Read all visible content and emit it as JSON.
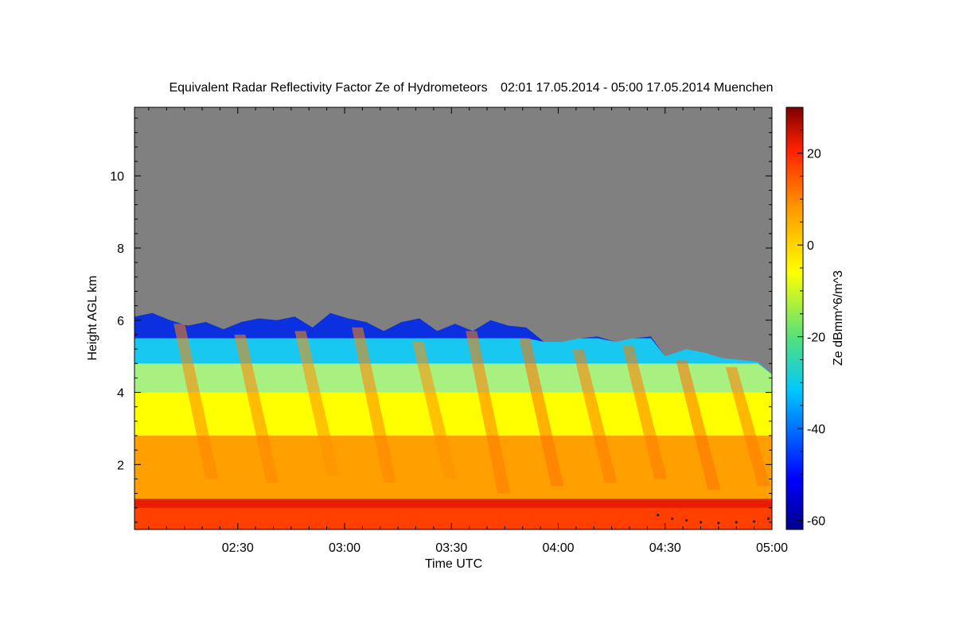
{
  "chart_data": {
    "type": "heatmap",
    "title": "Equivalent Radar Reflectivity Factor Ze of Hydrometeors",
    "subtitle": "02:01 17.05.2014 - 05:00 17.05.2014 Muenchen",
    "xlabel": "Time UTC",
    "ylabel": "Height AGL km",
    "x_ticks": [
      "02:30",
      "03:00",
      "03:30",
      "04:00",
      "04:30",
      "05:00"
    ],
    "x_tick_minutes": [
      150,
      180,
      210,
      240,
      270,
      300
    ],
    "xlim_minutes": [
      121,
      300
    ],
    "y_ticks": [
      "2",
      "4",
      "6",
      "8",
      "10"
    ],
    "y_tick_values": [
      2,
      4,
      6,
      8,
      10
    ],
    "ylim": [
      0.2,
      11.9
    ],
    "colorbar": {
      "label": "Ze dBmm^6/m^3",
      "ticks": [
        "20",
        "0",
        "-20",
        "-40",
        "-60"
      ],
      "tick_values": [
        20,
        0,
        -20,
        -40,
        -60
      ],
      "range": [
        -62,
        30
      ]
    },
    "background_color": "#808080",
    "echo_top_km": [
      {
        "minute": 121,
        "height": 6.1
      },
      {
        "minute": 126,
        "height": 6.2
      },
      {
        "minute": 131,
        "height": 6.0
      },
      {
        "minute": 136,
        "height": 5.85
      },
      {
        "minute": 141,
        "height": 5.95
      },
      {
        "minute": 146,
        "height": 5.75
      },
      {
        "minute": 151,
        "height": 5.95
      },
      {
        "minute": 156,
        "height": 6.05
      },
      {
        "minute": 161,
        "height": 6.0
      },
      {
        "minute": 166,
        "height": 6.1
      },
      {
        "minute": 171,
        "height": 5.8
      },
      {
        "minute": 176,
        "height": 6.2
      },
      {
        "minute": 181,
        "height": 6.05
      },
      {
        "minute": 186,
        "height": 5.95
      },
      {
        "minute": 191,
        "height": 5.7
      },
      {
        "minute": 196,
        "height": 5.95
      },
      {
        "minute": 201,
        "height": 6.05
      },
      {
        "minute": 206,
        "height": 5.7
      },
      {
        "minute": 211,
        "height": 5.9
      },
      {
        "minute": 216,
        "height": 5.7
      },
      {
        "minute": 221,
        "height": 6.0
      },
      {
        "minute": 226,
        "height": 5.85
      },
      {
        "minute": 231,
        "height": 5.8
      },
      {
        "minute": 236,
        "height": 5.4
      },
      {
        "minute": 241,
        "height": 5.4
      },
      {
        "minute": 246,
        "height": 5.5
      },
      {
        "minute": 251,
        "height": 5.55
      },
      {
        "minute": 256,
        "height": 5.4
      },
      {
        "minute": 261,
        "height": 5.5
      },
      {
        "minute": 266,
        "height": 5.55
      },
      {
        "minute": 270,
        "height": 5.0
      },
      {
        "minute": 276,
        "height": 5.2
      },
      {
        "minute": 281,
        "height": 5.1
      },
      {
        "minute": 286,
        "height": 4.95
      },
      {
        "minute": 291,
        "height": 4.9
      },
      {
        "minute": 296,
        "height": 4.85
      },
      {
        "minute": 300,
        "height": 4.5
      }
    ],
    "melting_layer_km": [
      0.8,
      1.05
    ],
    "intensity_layers": [
      {
        "from_km": 5.5,
        "to_km": 6.2,
        "ze_dbz": -38,
        "color": "#0a30e0"
      },
      {
        "from_km": 4.8,
        "to_km": 5.5,
        "ze_dbz": -25,
        "color": "#19c8f0"
      },
      {
        "from_km": 4.0,
        "to_km": 4.8,
        "ze_dbz": -8,
        "color": "#a8f080"
      },
      {
        "from_km": 2.8,
        "to_km": 4.0,
        "ze_dbz": 0,
        "color": "#ffff00"
      },
      {
        "from_km": 1.0,
        "to_km": 2.8,
        "ze_dbz": 8,
        "color": "#ffa000"
      },
      {
        "from_km": 0.2,
        "to_km": 1.0,
        "ze_dbz": 15,
        "color": "#ff4000"
      }
    ],
    "fall_streaks": [
      {
        "minute": 132,
        "top_km": 5.9,
        "bottom_km": 1.6,
        "ze_dbz": 10
      },
      {
        "minute": 149,
        "top_km": 5.6,
        "bottom_km": 1.5,
        "ze_dbz": 10
      },
      {
        "minute": 166,
        "top_km": 5.7,
        "bottom_km": 1.7,
        "ze_dbz": 9
      },
      {
        "minute": 182,
        "top_km": 5.8,
        "bottom_km": 1.5,
        "ze_dbz": 10
      },
      {
        "minute": 199,
        "top_km": 5.4,
        "bottom_km": 1.6,
        "ze_dbz": 9
      },
      {
        "minute": 214,
        "top_km": 5.7,
        "bottom_km": 1.2,
        "ze_dbz": 11
      },
      {
        "minute": 229,
        "top_km": 5.5,
        "bottom_km": 1.4,
        "ze_dbz": 12
      },
      {
        "minute": 244,
        "top_km": 5.2,
        "bottom_km": 1.5,
        "ze_dbz": 11
      },
      {
        "minute": 258,
        "top_km": 5.3,
        "bottom_km": 1.6,
        "ze_dbz": 11
      },
      {
        "minute": 273,
        "top_km": 4.9,
        "bottom_km": 1.3,
        "ze_dbz": 12
      },
      {
        "minute": 287,
        "top_km": 4.7,
        "bottom_km": 1.4,
        "ze_dbz": 11
      }
    ],
    "ground_clutter": [
      {
        "minute": 268,
        "height": 0.6
      },
      {
        "minute": 272,
        "height": 0.5
      },
      {
        "minute": 276,
        "height": 0.45
      },
      {
        "minute": 280,
        "height": 0.4
      },
      {
        "minute": 285,
        "height": 0.38
      },
      {
        "minute": 290,
        "height": 0.4
      },
      {
        "minute": 295,
        "height": 0.42
      },
      {
        "minute": 299,
        "height": 0.5
      }
    ]
  }
}
